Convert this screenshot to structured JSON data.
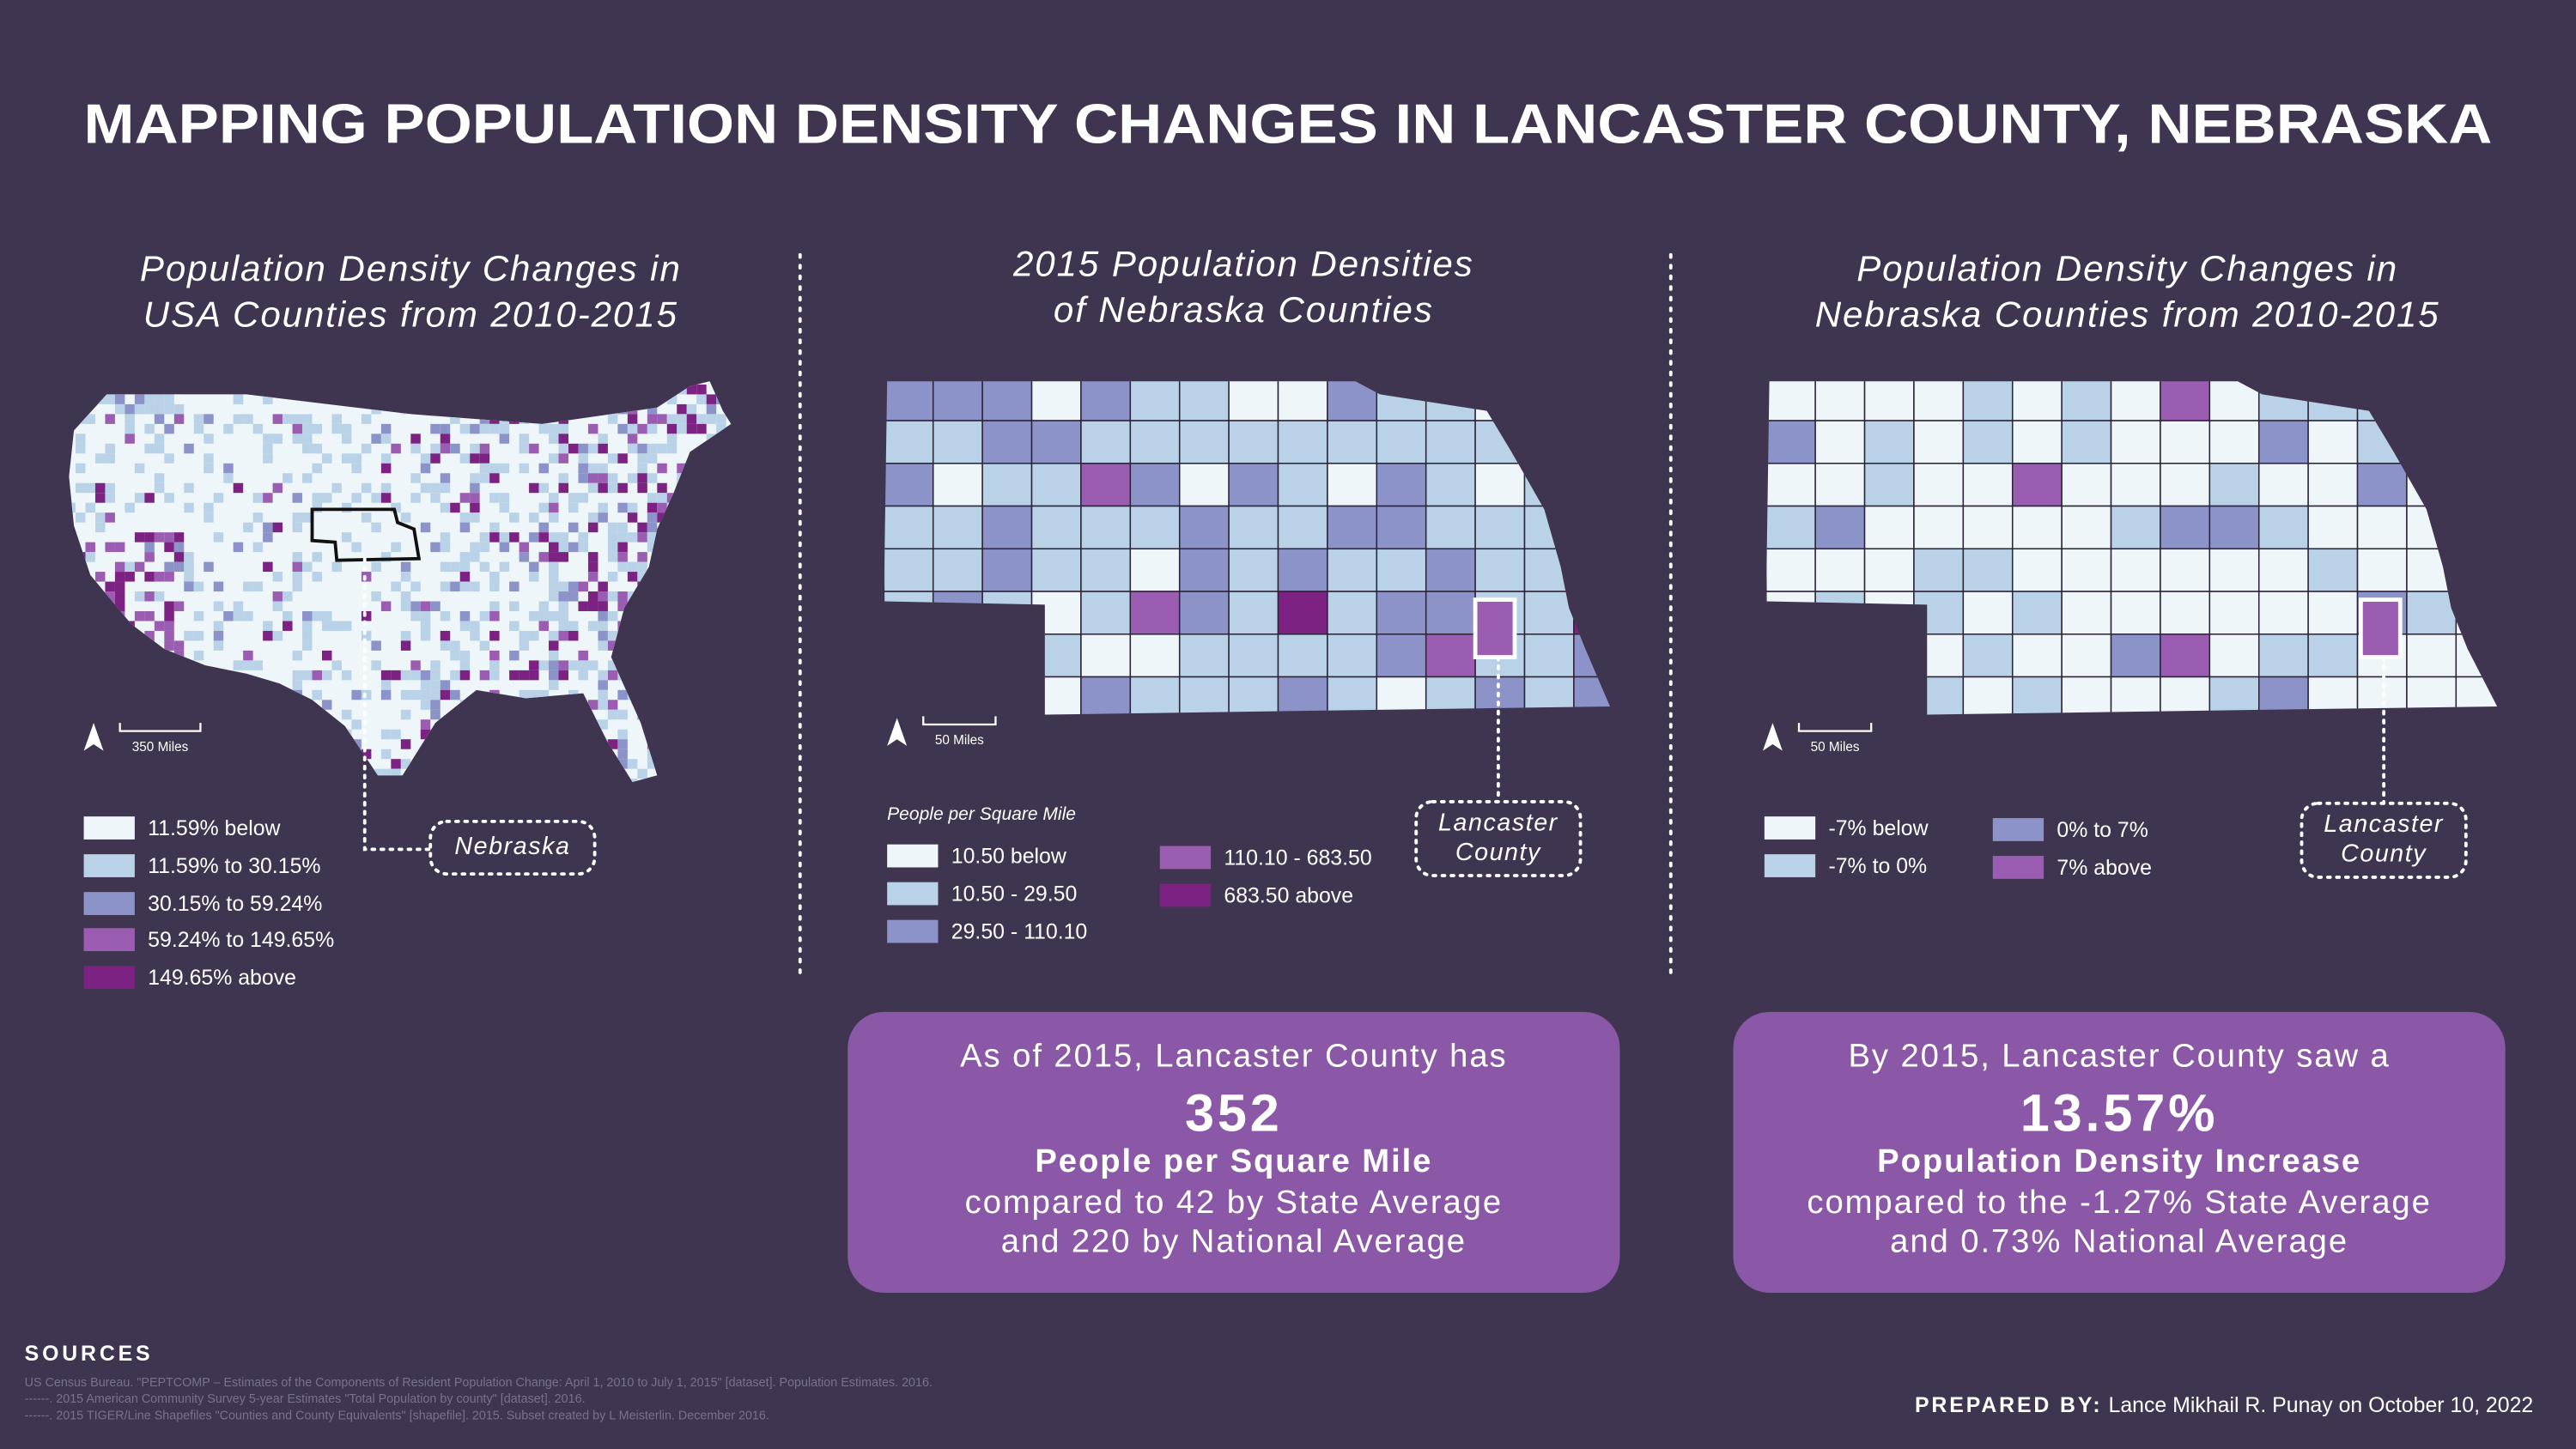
{
  "title": "MAPPING POPULATION DENSITY CHANGES IN LANCASTER COUNTY, NEBRASKA",
  "panels": [
    {
      "title_lines": [
        "Population Density Changes in",
        "USA Counties from 2010-2015"
      ],
      "scale_label": "350 Miles",
      "legend": [
        {
          "label": "11.59% below",
          "color": "#eef6fa"
        },
        {
          "label": "11.59% to 30.15%",
          "color": "#b9d2e7"
        },
        {
          "label": "30.15% to 59.24%",
          "color": "#8c93c9"
        },
        {
          "label": "59.24% to 149.65%",
          "color": "#9a5db2"
        },
        {
          "label": "149.65% above",
          "color": "#7b2283"
        }
      ],
      "callout_lines": [
        "Nebraska"
      ]
    },
    {
      "title_lines": [
        "2015 Population Densities",
        "of Nebraska Counties"
      ],
      "scale_label": "50 Miles",
      "legend_title": "People per Square Mile",
      "legend": [
        {
          "label": "10.50 below",
          "color": "#eef6fa"
        },
        {
          "label": "10.50 - 29.50",
          "color": "#b9d2e7"
        },
        {
          "label": "29.50 - 110.10",
          "color": "#8c93c9"
        },
        {
          "label": "110.10 - 683.50",
          "color": "#9a5db2"
        },
        {
          "label": "683.50 above",
          "color": "#7b2283"
        }
      ],
      "callout_lines": [
        "Lancaster",
        "County"
      ],
      "stat": {
        "lead": "As of 2015, Lancaster County has",
        "value": "352",
        "unit": "People per Square Mile",
        "lines": [
          "compared to 42 by State Average",
          "and 220 by National Average"
        ]
      }
    },
    {
      "title_lines": [
        "Population Density Changes in",
        "Nebraska Counties from 2010-2015"
      ],
      "scale_label": "50 Miles",
      "legend": [
        {
          "label": "-7% below",
          "color": "#eef6fa"
        },
        {
          "label": "-7% to 0%",
          "color": "#b9d2e7"
        },
        {
          "label": "0% to 7%",
          "color": "#8c93c9"
        },
        {
          "label": "7% above",
          "color": "#9a5db2"
        }
      ],
      "callout_lines": [
        "Lancaster",
        "County"
      ],
      "stat": {
        "lead": "By 2015, Lancaster County saw a",
        "value": "13.57%",
        "unit": "Population Density Increase",
        "lines": [
          "compared to the -1.27% State Average",
          "and 0.73% National Average"
        ]
      }
    }
  ],
  "sources": {
    "heading": "SOURCES",
    "lines": [
      "US Census Bureau. \"PEPTCOMP – Estimates of the Components of Resident Population Change: April 1, 2010 to July 1, 2015\" [dataset]. Population Estimates. 2016.",
      "------. 2015 American Community Survey 5-year Estimates \"Total Population by county\" [dataset]. 2016.",
      "------. 2015 TIGER/Line Shapefiles \"Counties and County Equivalents\" [shapefile]. 2015. Subset created by L Meisterlin. December 2016."
    ]
  },
  "prepared": {
    "label": "PREPARED BY:",
    "text": "Lance Mikhail R. Punay on October 10, 2022"
  }
}
